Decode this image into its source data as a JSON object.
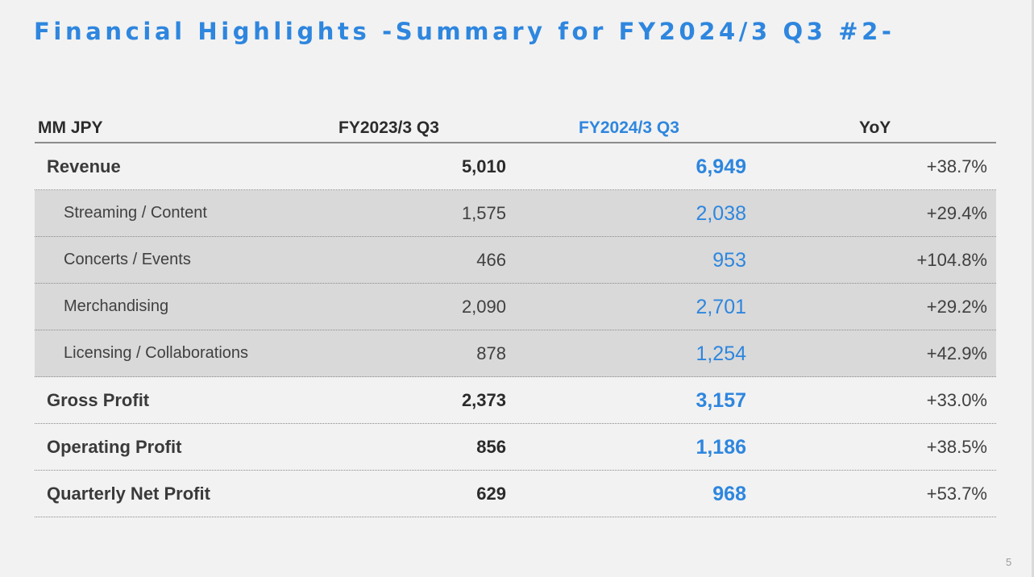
{
  "slide": {
    "title": "Financial Highlights -Summary for FY2024/3 Q3 #2-",
    "page_number": "5"
  },
  "table": {
    "headers": {
      "unit": "MM JPY",
      "prev": "FY2023/3 Q3",
      "curr": "FY2024/3 Q3",
      "yoy": "YoY"
    },
    "rows": [
      {
        "label": "Revenue",
        "prev": "5,010",
        "curr": "6,949",
        "yoy": "+38.7%"
      },
      {
        "label": "Streaming / Content",
        "prev": "1,575",
        "curr": "2,038",
        "yoy": "+29.4%"
      },
      {
        "label": "Concerts / Events",
        "prev": "466",
        "curr": "953",
        "yoy": "+104.8%"
      },
      {
        "label": "Merchandising",
        "prev": "2,090",
        "curr": "2,701",
        "yoy": "+29.2%"
      },
      {
        "label": "Licensing / Collaborations",
        "prev": "878",
        "curr": "1,254",
        "yoy": "+42.9%"
      },
      {
        "label": "Gross Profit",
        "prev": "2,373",
        "curr": "3,157",
        "yoy": "+33.0%"
      },
      {
        "label": "Operating Profit",
        "prev": "856",
        "curr": "1,186",
        "yoy": "+38.5%"
      },
      {
        "label": "Quarterly Net Profit",
        "prev": "629",
        "curr": "968",
        "yoy": "+53.7%"
      }
    ]
  },
  "colors": {
    "accent": "#2e86de",
    "background": "#f2f2f2",
    "sub_row_background": "#d9d9d9",
    "text": "#3a3a3a"
  }
}
